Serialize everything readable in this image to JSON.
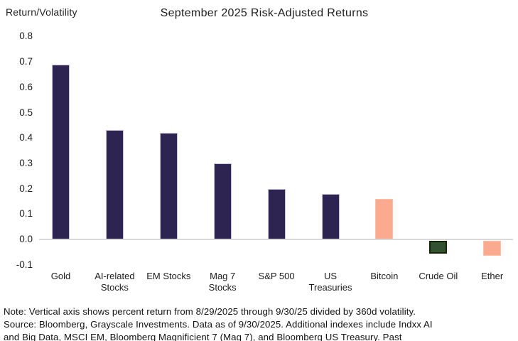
{
  "chart_data": {
    "type": "bar",
    "title": "September 2025 Risk-Adjusted Returns",
    "ylabel": "Return/Volatility",
    "xlabel": "",
    "categories": [
      "Gold",
      "AI-related\nStocks",
      "EM Stocks",
      "Mag 7\nStocks",
      "S&P 500",
      "US\nTreasuries",
      "Bitcoin",
      "Crude Oil",
      "Ether"
    ],
    "values": [
      0.69,
      0.43,
      0.42,
      0.3,
      0.2,
      0.18,
      0.16,
      -0.05,
      -0.06
    ],
    "bar_colors": [
      "navy",
      "navy",
      "navy",
      "navy",
      "navy",
      "navy",
      "peach",
      "green",
      "peach"
    ],
    "ylim": [
      -0.1,
      0.8
    ],
    "yticks": [
      0.8,
      0.7,
      0.6,
      0.5,
      0.4,
      0.3,
      0.2,
      0.1,
      0.0,
      -0.1
    ],
    "grid": false,
    "legend": null
  },
  "colors": {
    "navy": "#2d2452",
    "navy_border": "#c9c2df",
    "peach": "#fbaa8f",
    "peach_border": "#fcc0a9",
    "green": "#315130",
    "green_border": "#142508",
    "baseline": "#d9d9d9"
  },
  "footnote": {
    "lines": [
      "Note: Vertical axis shows percent return from 8/29/2025 through 9/30/25 divided by 360d volatility.",
      "Source: Bloomberg, Grayscale Investments. Data as of 9/30/2025. Additional indexes include Indxx AI",
      "and Big Data, MSCI EM, Bloomberg Magnificient 7 (Mag 7), and Bloomberg US Treasury. Past"
    ]
  }
}
